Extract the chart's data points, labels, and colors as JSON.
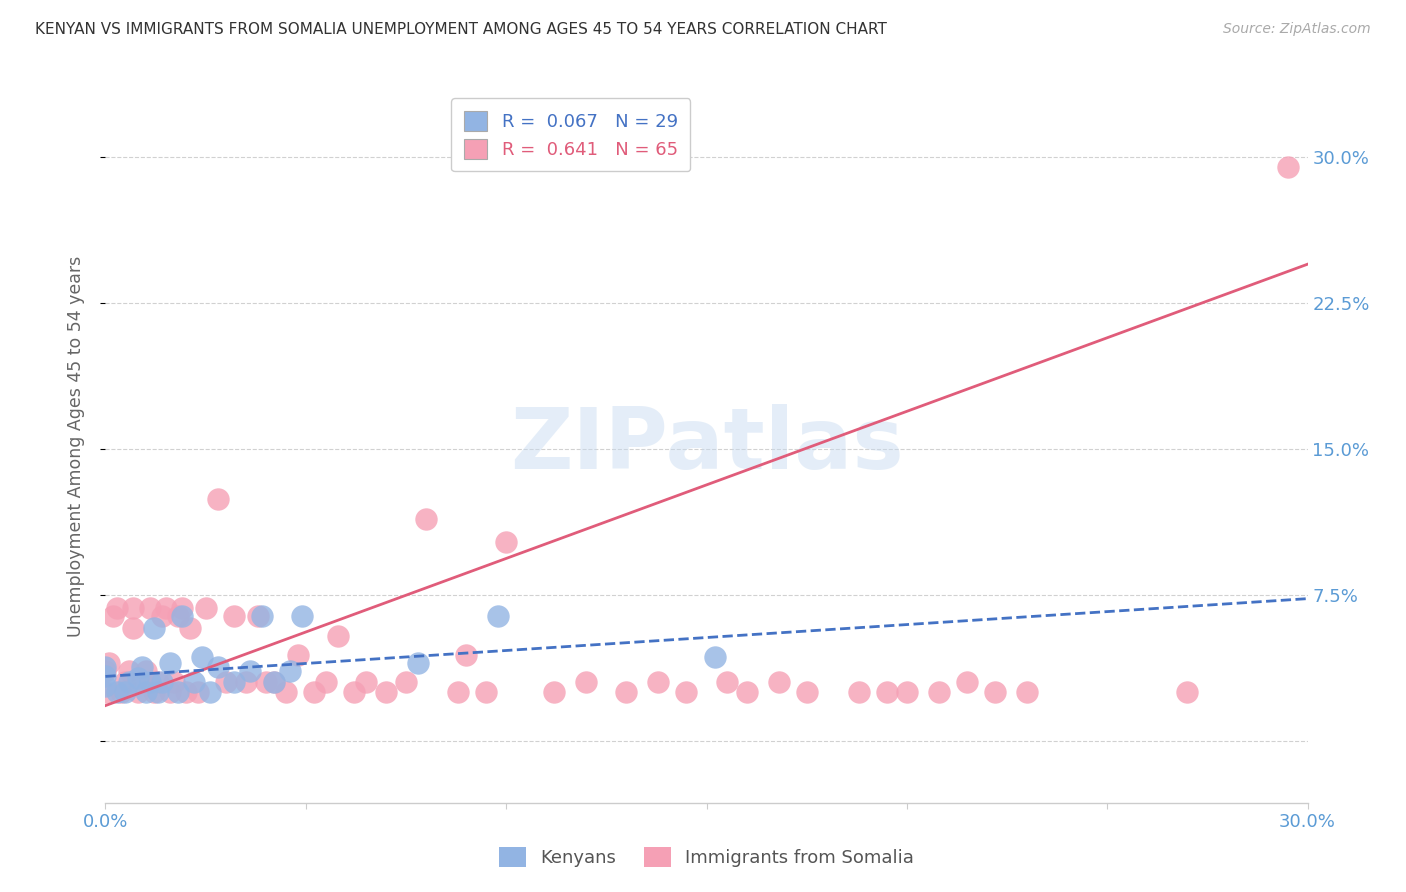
{
  "title": "KENYAN VS IMMIGRANTS FROM SOMALIA UNEMPLOYMENT AMONG AGES 45 TO 54 YEARS CORRELATION CHART",
  "source": "Source: ZipAtlas.com",
  "ylabel": "Unemployment Among Ages 45 to 54 years",
  "xlim": [
    0.0,
    0.3
  ],
  "ylim": [
    -0.032,
    0.335
  ],
  "yticks": [
    0.0,
    0.075,
    0.15,
    0.225,
    0.3
  ],
  "xtick_positions": [
    0.0,
    0.05,
    0.1,
    0.15,
    0.2,
    0.25,
    0.3
  ],
  "legend_blue_R": "0.067",
  "legend_blue_N": "29",
  "legend_pink_R": "0.641",
  "legend_pink_N": "65",
  "blue_color": "#92b4e3",
  "pink_color": "#f5a0b5",
  "blue_line_color": "#4472c4",
  "pink_line_color": "#e05c7a",
  "axis_label_color": "#5b9bd5",
  "pink_line_x0": 0.0,
  "pink_line_y0": 0.018,
  "pink_line_x1": 0.3,
  "pink_line_y1": 0.245,
  "blue_line_x0": 0.0,
  "blue_line_y0": 0.033,
  "blue_line_x1": 0.3,
  "blue_line_y1": 0.073,
  "blue_x": [
    0.0,
    0.0,
    0.0,
    0.003,
    0.005,
    0.006,
    0.008,
    0.009,
    0.01,
    0.011,
    0.012,
    0.013,
    0.014,
    0.016,
    0.018,
    0.019,
    0.022,
    0.024,
    0.026,
    0.028,
    0.032,
    0.036,
    0.039,
    0.042,
    0.046,
    0.049,
    0.078,
    0.098,
    0.152
  ],
  "blue_y": [
    0.028,
    0.033,
    0.038,
    0.025,
    0.025,
    0.03,
    0.032,
    0.038,
    0.025,
    0.03,
    0.058,
    0.025,
    0.03,
    0.04,
    0.025,
    0.064,
    0.03,
    0.043,
    0.025,
    0.038,
    0.03,
    0.036,
    0.064,
    0.03,
    0.036,
    0.064,
    0.04,
    0.064,
    0.043
  ],
  "pink_x": [
    0.0,
    0.0,
    0.001,
    0.002,
    0.003,
    0.004,
    0.005,
    0.006,
    0.007,
    0.007,
    0.008,
    0.009,
    0.01,
    0.011,
    0.012,
    0.013,
    0.014,
    0.015,
    0.016,
    0.017,
    0.018,
    0.019,
    0.02,
    0.021,
    0.023,
    0.025,
    0.028,
    0.03,
    0.032,
    0.035,
    0.038,
    0.04,
    0.042,
    0.045,
    0.048,
    0.052,
    0.055,
    0.058,
    0.062,
    0.065,
    0.07,
    0.075,
    0.08,
    0.088,
    0.09,
    0.095,
    0.1,
    0.112,
    0.12,
    0.13,
    0.138,
    0.145,
    0.155,
    0.16,
    0.168,
    0.175,
    0.188,
    0.195,
    0.2,
    0.208,
    0.215,
    0.222,
    0.23,
    0.27,
    0.295
  ],
  "pink_y": [
    0.025,
    0.036,
    0.04,
    0.064,
    0.068,
    0.025,
    0.03,
    0.036,
    0.058,
    0.068,
    0.025,
    0.03,
    0.036,
    0.068,
    0.025,
    0.03,
    0.064,
    0.068,
    0.025,
    0.03,
    0.064,
    0.068,
    0.025,
    0.058,
    0.025,
    0.068,
    0.124,
    0.03,
    0.064,
    0.03,
    0.064,
    0.03,
    0.03,
    0.025,
    0.044,
    0.025,
    0.03,
    0.054,
    0.025,
    0.03,
    0.025,
    0.03,
    0.114,
    0.025,
    0.044,
    0.025,
    0.102,
    0.025,
    0.03,
    0.025,
    0.03,
    0.025,
    0.03,
    0.025,
    0.03,
    0.025,
    0.025,
    0.025,
    0.025,
    0.025,
    0.03,
    0.025,
    0.025,
    0.025,
    0.295
  ]
}
